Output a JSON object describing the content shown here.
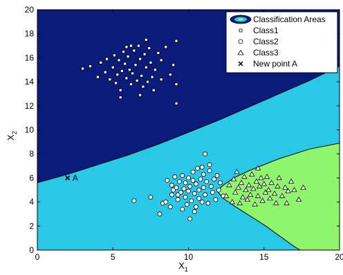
{
  "chart_data": {
    "type": "scatter",
    "xlabel": "X",
    "xlabel_sub": "1",
    "ylabel": "X",
    "ylabel_sub": "2",
    "xlim": [
      0,
      20
    ],
    "ylim": [
      0,
      20
    ],
    "xticks": [
      0,
      5,
      10,
      15,
      20
    ],
    "yticks": [
      0,
      2,
      4,
      6,
      8,
      10,
      12,
      14,
      16,
      18,
      20
    ],
    "grid": false,
    "legend_placement": "top-right",
    "legend": [
      {
        "label": "Classification Areas",
        "marker": "area"
      },
      {
        "label": "Class1",
        "marker": "square"
      },
      {
        "label": "Class2",
        "marker": "circle"
      },
      {
        "label": "Class3",
        "marker": "triangle"
      },
      {
        "label": "New point A",
        "marker": "x"
      }
    ],
    "areas": {
      "region1_color": "#0b1b7a",
      "region2_color": "#29c8e6",
      "region3_color": "#8ef56c",
      "boundary_1_2": [
        [
          0,
          5.6
        ],
        [
          2,
          6.3
        ],
        [
          4,
          7.1
        ],
        [
          6,
          7.9
        ],
        [
          8,
          8.8
        ],
        [
          10,
          9.8
        ],
        [
          12,
          10.8
        ],
        [
          14,
          11.9
        ],
        [
          16,
          13.0
        ],
        [
          18,
          14.1
        ],
        [
          20,
          15.3
        ]
      ],
      "boundary_2_3": [
        [
          20,
          8.9
        ],
        [
          18,
          8.4
        ],
        [
          16,
          7.6
        ],
        [
          14,
          6.6
        ],
        [
          13,
          6.0
        ],
        [
          12.3,
          5.4
        ],
        [
          11.9,
          4.9
        ],
        [
          12.3,
          4.3
        ],
        [
          13,
          3.7
        ],
        [
          14,
          2.9
        ],
        [
          15,
          2.1
        ],
        [
          16,
          1.2
        ],
        [
          17,
          0.3
        ],
        [
          17.4,
          0
        ]
      ]
    },
    "series": [
      {
        "name": "Class1",
        "marker": "square",
        "points": [
          [
            3,
            15.1
          ],
          [
            3.5,
            15.3
          ],
          [
            4,
            14.4
          ],
          [
            4.2,
            15.6
          ],
          [
            4.5,
            14.8
          ],
          [
            4.8,
            14.2
          ],
          [
            5,
            15.2
          ],
          [
            5.1,
            16.2
          ],
          [
            5.2,
            13.9
          ],
          [
            5.3,
            14.6
          ],
          [
            5.4,
            15.8
          ],
          [
            5.5,
            13.3
          ],
          [
            5.6,
            14.9
          ],
          [
            5.7,
            16.5
          ],
          [
            5.8,
            15.5
          ],
          [
            5.9,
            14.3
          ],
          [
            6,
            16.1
          ],
          [
            6.1,
            15.0
          ],
          [
            6.2,
            13.8
          ],
          [
            6.3,
            14.7
          ],
          [
            6.4,
            16.6
          ],
          [
            6.5,
            15.4
          ],
          [
            6.6,
            14.1
          ],
          [
            6.7,
            17.0
          ],
          [
            6.8,
            15.9
          ],
          [
            6.9,
            14.5
          ],
          [
            7,
            13.6
          ],
          [
            7.1,
            16.3
          ],
          [
            7.2,
            15.2
          ],
          [
            7.3,
            14.0
          ],
          [
            7.4,
            16.8
          ],
          [
            7.5,
            15.6
          ],
          [
            7.6,
            14.4
          ],
          [
            7.8,
            15.0
          ],
          [
            8,
            16.4
          ],
          [
            8.2,
            14.2
          ],
          [
            8.5,
            16.9
          ],
          [
            8.8,
            14.6
          ],
          [
            9,
            15.4
          ],
          [
            9.2,
            17.4
          ],
          [
            9.2,
            13.8
          ],
          [
            9.2,
            12.2
          ],
          [
            7.2,
            17.5
          ],
          [
            6.2,
            17.0
          ],
          [
            5.5,
            12.7
          ],
          [
            4.6,
            15.9
          ],
          [
            8.2,
            15.8
          ],
          [
            6.8,
            12.9
          ],
          [
            5.9,
            16.9
          ],
          [
            7.7,
            13.3
          ]
        ]
      },
      {
        "name": "Class2",
        "marker": "circle",
        "points": [
          [
            6.4,
            4.1
          ],
          [
            7.5,
            4.4
          ],
          [
            8.1,
            3.0
          ],
          [
            8.3,
            3.9
          ],
          [
            8.5,
            4.0
          ],
          [
            8.8,
            3.6
          ],
          [
            8.9,
            4.6
          ],
          [
            8.9,
            5.4
          ],
          [
            9.0,
            5.0
          ],
          [
            9.2,
            5.2
          ],
          [
            9.3,
            4.2
          ],
          [
            9.4,
            5.7
          ],
          [
            9.5,
            4.8
          ],
          [
            9.6,
            6.2
          ],
          [
            9.7,
            5.1
          ],
          [
            9.8,
            4.4
          ],
          [
            9.8,
            5.6
          ],
          [
            9.9,
            3.8
          ],
          [
            10.0,
            6.0
          ],
          [
            10.0,
            4.9
          ],
          [
            10.1,
            5.3
          ],
          [
            10.1,
            2.6
          ],
          [
            10.2,
            4.1
          ],
          [
            10.3,
            6.5
          ],
          [
            10.3,
            5.8
          ],
          [
            10.4,
            4.7
          ],
          [
            10.5,
            5.5
          ],
          [
            10.5,
            3.6
          ],
          [
            10.6,
            6.8
          ],
          [
            10.7,
            4.3
          ],
          [
            10.7,
            5.0
          ],
          [
            10.8,
            5.9
          ],
          [
            10.9,
            4.0
          ],
          [
            11.0,
            6.3
          ],
          [
            11.0,
            5.2
          ],
          [
            11.1,
            4.6
          ],
          [
            11.1,
            8.0
          ],
          [
            11.2,
            5.7
          ],
          [
            11.3,
            3.9
          ],
          [
            11.4,
            6.6
          ],
          [
            11.5,
            5.3
          ],
          [
            11.6,
            4.8
          ],
          [
            11.7,
            5.9
          ],
          [
            11.8,
            4.2
          ],
          [
            12.0,
            5.0
          ],
          [
            12.1,
            5.6
          ],
          [
            12.3,
            4.5
          ],
          [
            9.1,
            6.1
          ],
          [
            8.6,
            5.8
          ],
          [
            10.4,
            3.2
          ],
          [
            11.4,
            7.1
          ],
          [
            9.6,
            3.4
          ],
          [
            11.9,
            6.2
          ],
          [
            10.9,
            6.9
          ],
          [
            9.3,
            4.6
          ]
        ]
      },
      {
        "name": "Class3",
        "marker": "triangle",
        "points": [
          [
            12.5,
            4.5
          ],
          [
            12.7,
            5.4
          ],
          [
            12.9,
            4.0
          ],
          [
            13.0,
            5.9
          ],
          [
            13.1,
            4.8
          ],
          [
            13.3,
            5.2
          ],
          [
            13.4,
            3.9
          ],
          [
            13.5,
            5.6
          ],
          [
            13.6,
            4.4
          ],
          [
            13.7,
            6.1
          ],
          [
            13.8,
            5.0
          ],
          [
            13.9,
            4.2
          ],
          [
            14.0,
            5.4
          ],
          [
            14.1,
            4.6
          ],
          [
            14.2,
            6.3
          ],
          [
            14.3,
            5.1
          ],
          [
            14.4,
            3.8
          ],
          [
            14.5,
            5.7
          ],
          [
            14.6,
            4.5
          ],
          [
            14.7,
            5.3
          ],
          [
            14.8,
            6.0
          ],
          [
            14.9,
            4.1
          ],
          [
            15.0,
            5.5
          ],
          [
            15.1,
            4.8
          ],
          [
            15.2,
            6.1
          ],
          [
            15.3,
            5.0
          ],
          [
            15.4,
            4.3
          ],
          [
            15.5,
            5.6
          ],
          [
            15.7,
            4.7
          ],
          [
            15.9,
            5.3
          ],
          [
            16.0,
            6.0
          ],
          [
            16.2,
            4.5
          ],
          [
            16.4,
            5.2
          ],
          [
            16.6,
            4.9
          ],
          [
            16.8,
            5.7
          ],
          [
            17.0,
            5.0
          ],
          [
            13.2,
            6.5
          ],
          [
            14.6,
            6.8
          ],
          [
            15.8,
            3.9
          ],
          [
            16.5,
            3.9
          ],
          [
            17.3,
            4.2
          ],
          [
            17.6,
            5.2
          ]
        ]
      }
    ],
    "new_point": {
      "label": "A",
      "x": 2,
      "y": 6
    }
  }
}
